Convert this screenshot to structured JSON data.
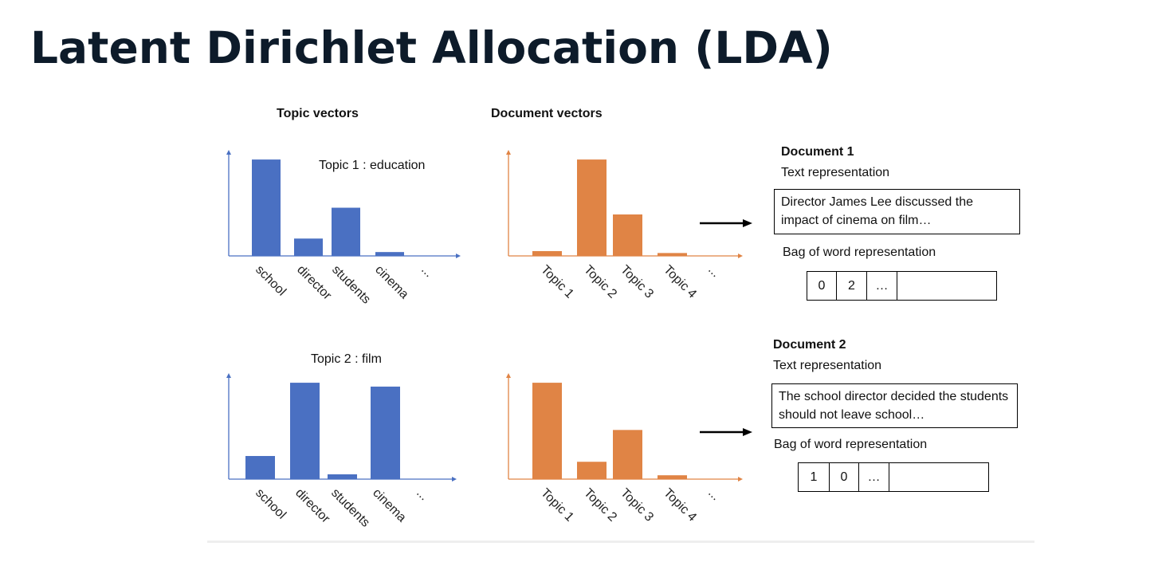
{
  "title": "Latent Dirichlet Allocation (LDA)",
  "headers": {
    "topic_vectors": "Topic vectors",
    "document_vectors": "Document vectors"
  },
  "chart_data": [
    {
      "type": "bar",
      "title": "Topic 1 : education",
      "categories": [
        "school",
        "director",
        "students",
        "cinema",
        "..."
      ],
      "values": [
        100,
        18,
        50,
        4,
        null
      ],
      "color": "#4a70c2",
      "ylim": [
        0,
        110
      ]
    },
    {
      "type": "bar",
      "title": "",
      "categories": [
        "Topic 1",
        "Topic 2",
        "Topic 3",
        "Topic 4",
        "..."
      ],
      "values": [
        5,
        100,
        43,
        3,
        null
      ],
      "color": "#e08445",
      "ylim": [
        0,
        110
      ]
    },
    {
      "type": "bar",
      "title": "Topic 2 : film",
      "categories": [
        "school",
        "director",
        "students",
        "cinema",
        "..."
      ],
      "values": [
        24,
        100,
        5,
        96,
        null
      ],
      "color": "#4a70c2",
      "ylim": [
        0,
        110
      ]
    },
    {
      "type": "bar",
      "title": "",
      "categories": [
        "Topic 1",
        "Topic 2",
        "Topic 3",
        "Topic 4",
        "..."
      ],
      "values": [
        100,
        18,
        51,
        4,
        null
      ],
      "color": "#e08445",
      "ylim": [
        0,
        110
      ]
    }
  ],
  "documents": [
    {
      "title": "Document 1",
      "text_label": "Text representation",
      "text": "Director James Lee discussed the impact of cinema on film…",
      "bow_label": "Bag of word representation",
      "bow": [
        "0",
        "2",
        "…",
        ""
      ]
    },
    {
      "title": "Document 2",
      "text_label": "Text representation",
      "text": "The school director decided the students should not leave school…",
      "bow_label": "Bag of word representation",
      "bow": [
        "1",
        "0",
        "…",
        ""
      ]
    }
  ]
}
